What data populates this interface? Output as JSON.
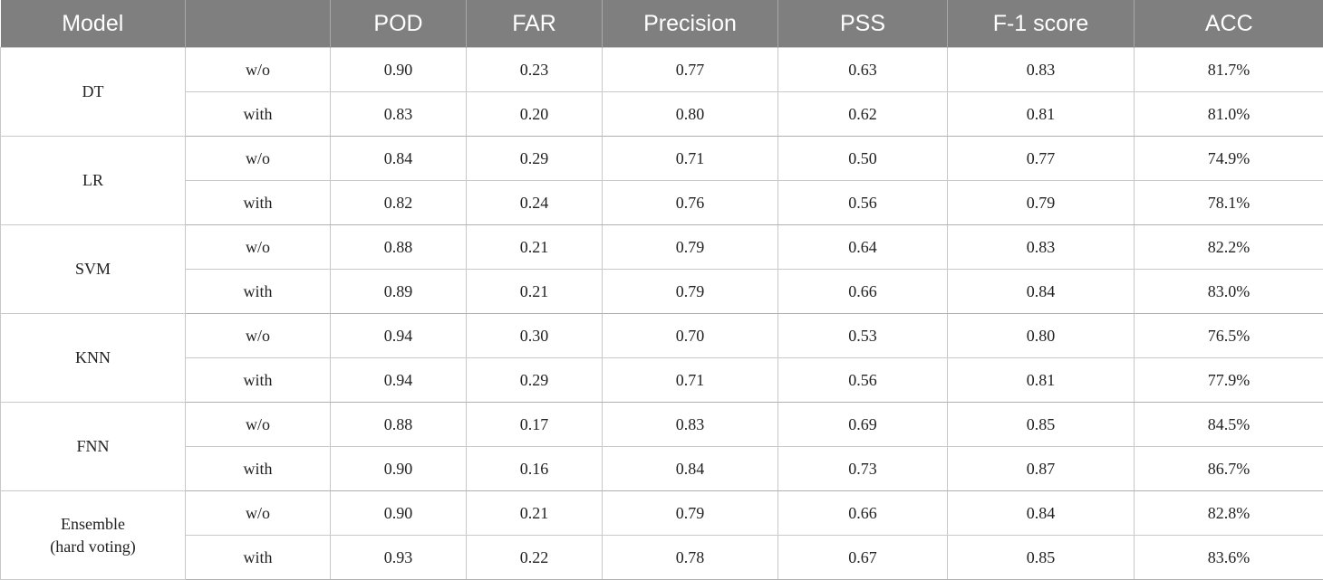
{
  "table": {
    "headers": [
      "Model",
      "",
      "POD",
      "FAR",
      "Precision",
      "PSS",
      "F-1 score",
      "ACC"
    ],
    "groups": [
      {
        "model": "DT",
        "rows": [
          [
            "w/o",
            "0.90",
            "0.23",
            "0.77",
            "0.63",
            "0.83",
            "81.7%"
          ],
          [
            "with",
            "0.83",
            "0.20",
            "0.80",
            "0.62",
            "0.81",
            "81.0%"
          ]
        ]
      },
      {
        "model": "LR",
        "rows": [
          [
            "w/o",
            "0.84",
            "0.29",
            "0.71",
            "0.50",
            "0.77",
            "74.9%"
          ],
          [
            "with",
            "0.82",
            "0.24",
            "0.76",
            "0.56",
            "0.79",
            "78.1%"
          ]
        ]
      },
      {
        "model": "SVM",
        "rows": [
          [
            "w/o",
            "0.88",
            "0.21",
            "0.79",
            "0.64",
            "0.83",
            "82.2%"
          ],
          [
            "with",
            "0.89",
            "0.21",
            "0.79",
            "0.66",
            "0.84",
            "83.0%"
          ]
        ]
      },
      {
        "model": "KNN",
        "rows": [
          [
            "w/o",
            "0.94",
            "0.30",
            "0.70",
            "0.53",
            "0.80",
            "76.5%"
          ],
          [
            "with",
            "0.94",
            "0.29",
            "0.71",
            "0.56",
            "0.81",
            "77.9%"
          ]
        ]
      },
      {
        "model": "FNN",
        "rows": [
          [
            "w/o",
            "0.88",
            "0.17",
            "0.83",
            "0.69",
            "0.85",
            "84.5%"
          ],
          [
            "with",
            "0.90",
            "0.16",
            "0.84",
            "0.73",
            "0.87",
            "86.7%"
          ]
        ]
      },
      {
        "model": [
          "Ensemble",
          "(hard voting)"
        ],
        "rows": [
          [
            "w/o",
            "0.90",
            "0.21",
            "0.79",
            "0.66",
            "0.84",
            "82.8%"
          ],
          [
            "with",
            "0.93",
            "0.22",
            "0.78",
            "0.67",
            "0.85",
            "83.6%"
          ]
        ]
      }
    ]
  }
}
